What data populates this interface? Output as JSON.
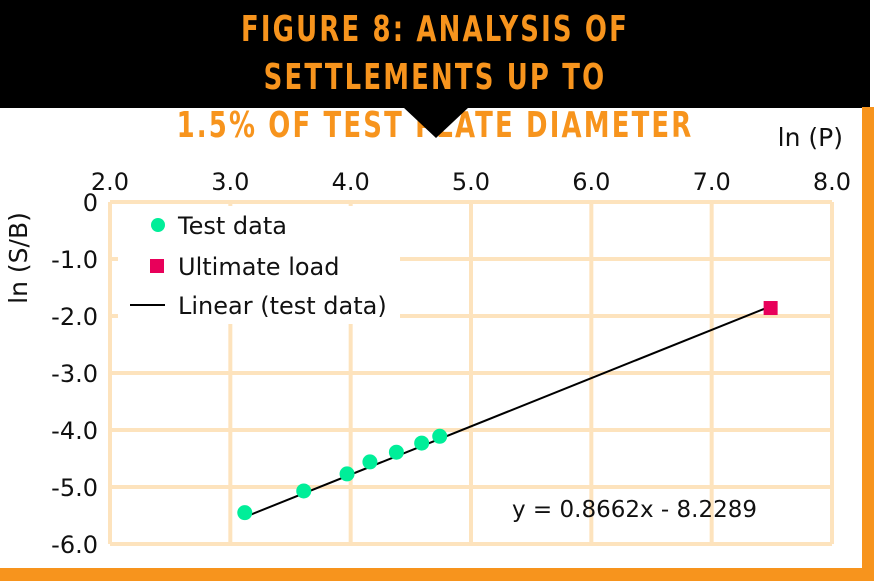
{
  "title_line1": "FIGURE 8: ANALYSIS OF SETTLEMENTS UP TO",
  "title_line2": "1.5% OF TEST PLATE DIAMETER",
  "colors": {
    "accent": "#f7941d",
    "banner": "#000000",
    "grid": "#fde3bd",
    "test_data": "#00ee99",
    "ultimate": "#e8005a"
  },
  "chart_data": {
    "type": "scatter",
    "title": "Figure 8: Analysis of settlements up to 1.5% of test plate diameter",
    "xlabel": "ln (P)",
    "ylabel": "ln (S/B)",
    "xlim": [
      2.0,
      8.0
    ],
    "ylim": [
      -6.0,
      0
    ],
    "x_ticks": [
      "2.0",
      "3.0",
      "4.0",
      "5.0",
      "6.0",
      "7.0",
      "8.0"
    ],
    "y_ticks": [
      "0",
      "-1.0",
      "-2.0",
      "-3.0",
      "-4.0",
      "-5.0",
      "-6.0"
    ],
    "x_tick_values": [
      2,
      3,
      4,
      5,
      6,
      7,
      8
    ],
    "y_tick_values": [
      0,
      -1,
      -2,
      -3,
      -4,
      -5,
      -6
    ],
    "grid": true,
    "legend_position": "top-left",
    "series": [
      {
        "name": "Test data",
        "marker": "circle",
        "points": [
          [
            3.12,
            -5.45
          ],
          [
            3.61,
            -5.07
          ],
          [
            3.97,
            -4.77
          ],
          [
            4.16,
            -4.56
          ],
          [
            4.38,
            -4.39
          ],
          [
            4.59,
            -4.23
          ],
          [
            4.74,
            -4.11
          ]
        ]
      },
      {
        "name": "Ultimate load",
        "marker": "square",
        "points": [
          [
            7.49,
            -1.86
          ]
        ]
      },
      {
        "name": "Linear (test data)",
        "type": "line",
        "slope": 0.8662,
        "intercept": -8.2289,
        "x_range": [
          3.12,
          7.45
        ]
      }
    ],
    "annotation": "y = 0.8662x - 8.2289"
  }
}
